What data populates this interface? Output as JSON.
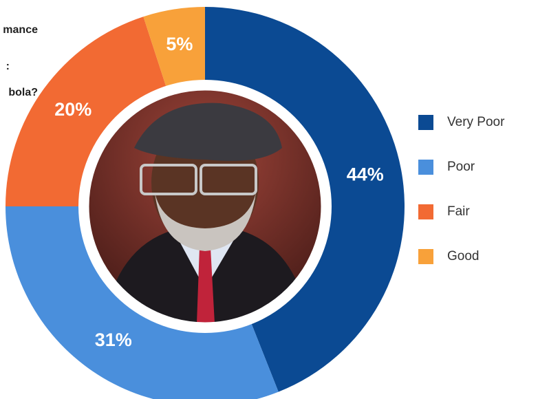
{
  "chart_data": {
    "type": "pie",
    "title_lines": [
      "mance",
      ":",
      "bola?"
    ],
    "categories": [
      "Very Poor",
      "Poor",
      "Fair",
      "Good"
    ],
    "values": [
      44,
      31,
      20,
      5
    ],
    "value_labels": [
      "44%",
      "31%",
      "20%",
      "5%"
    ],
    "colors": [
      "#0b4a93",
      "#4a8fdc",
      "#f26a33",
      "#f8a13a"
    ],
    "donut": true
  }
}
